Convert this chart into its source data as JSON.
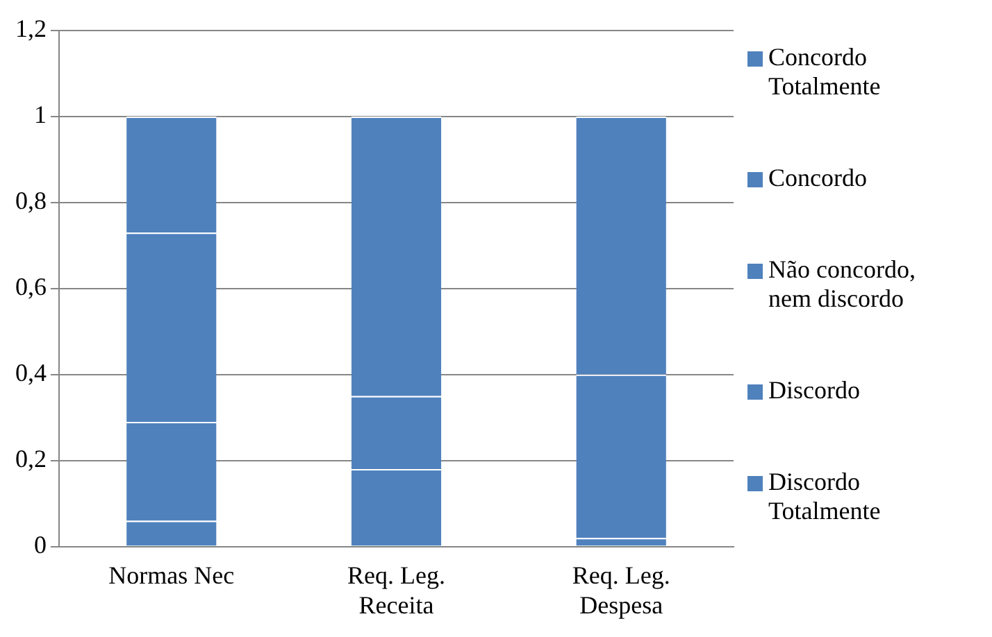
{
  "chart_data": {
    "type": "bar",
    "stacked": true,
    "categories": [
      "Normas Nec",
      "Req. Leg. Receita",
      "Req. Leg. Despesa"
    ],
    "series": [
      {
        "name": "Discordo Totalmente",
        "color": "#4f81bd",
        "values": [
          0,
          0,
          0
        ]
      },
      {
        "name": "Discordo",
        "color": "#4f81bd",
        "values": [
          0.06,
          0,
          0.02
        ]
      },
      {
        "name": "Não concordo, nem discordo",
        "color": "#4f81bd",
        "values": [
          0.23,
          0.18,
          0
        ]
      },
      {
        "name": "Concordo",
        "color": "#4f81bd",
        "values": [
          0.44,
          0.17,
          0.38
        ]
      },
      {
        "name": "Concordo Totalmente",
        "color": "#4f81bd",
        "values": [
          0.27,
          0.65,
          0.6
        ]
      }
    ],
    "ylim": [
      0,
      1.2
    ],
    "yticks": [
      {
        "value": 0,
        "label": "0"
      },
      {
        "value": 0.2,
        "label": "0,2"
      },
      {
        "value": 0.4,
        "label": "0,4"
      },
      {
        "value": 0.6,
        "label": "0,6"
      },
      {
        "value": 0.8,
        "label": "0,8"
      },
      {
        "value": 1,
        "label": "1"
      },
      {
        "value": 1.2,
        "label": "1,2"
      }
    ],
    "grid": "y",
    "legend": "right"
  }
}
